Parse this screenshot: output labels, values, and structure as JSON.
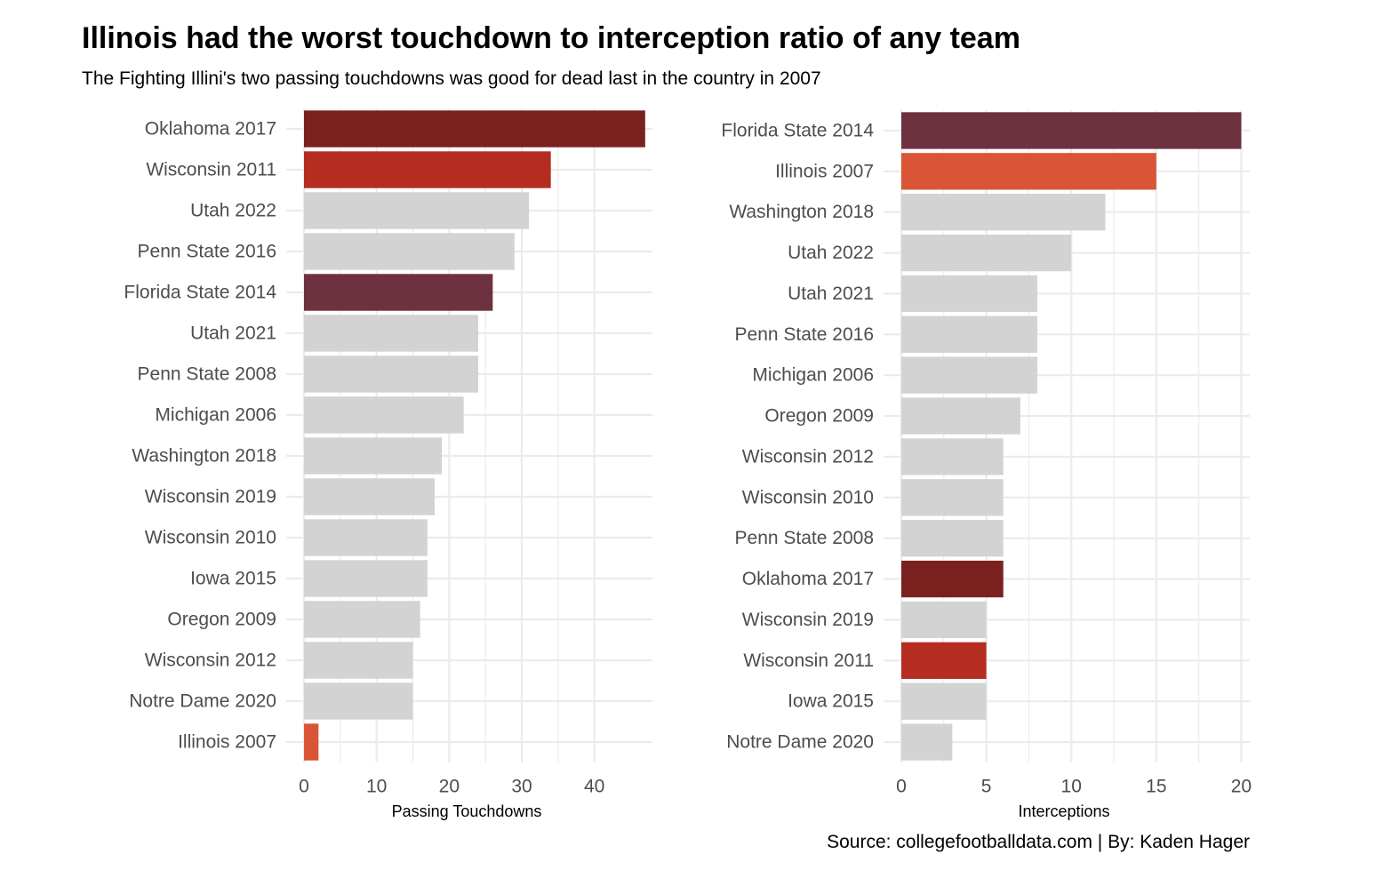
{
  "title": "Illinois had the worst touchdown to interception ratio of any team",
  "subtitle": "The Fighting Illini's two passing touchdowns was good for dead last in the country in 2007",
  "caption": "Source: collegefootballdata.com | By: Kaden Hager",
  "colors": {
    "default": "#d3d3d3",
    "Oklahoma 2017": "#7a2120",
    "Wisconsin 2011": "#b52d21",
    "Florida State 2014": "#6e3140",
    "Illinois 2007": "#d95535",
    "grid": "#ebebeb",
    "tick_text": "#4d4d4d"
  },
  "chart_data": [
    {
      "type": "bar",
      "orientation": "horizontal",
      "xlabel": "Passing Touchdowns",
      "xlim": [
        0,
        48
      ],
      "xticks": [
        0,
        10,
        20,
        30,
        40
      ],
      "categories": [
        "Oklahoma 2017",
        "Wisconsin 2011",
        "Utah 2022",
        "Penn State 2016",
        "Florida State 2014",
        "Utah 2021",
        "Penn State 2008",
        "Michigan 2006",
        "Washington 2018",
        "Wisconsin 2019",
        "Wisconsin 2010",
        "Iowa 2015",
        "Oregon 2009",
        "Wisconsin 2012",
        "Notre Dame 2020",
        "Illinois 2007"
      ],
      "values": [
        47,
        34,
        31,
        29,
        26,
        24,
        24,
        22,
        19,
        18,
        17,
        17,
        16,
        15,
        15,
        2
      ],
      "grid": true
    },
    {
      "type": "bar",
      "orientation": "horizontal",
      "xlabel": "Interceptions",
      "xlim": [
        0,
        20.5
      ],
      "xticks": [
        0,
        5,
        10,
        15,
        20
      ],
      "categories": [
        "Florida State 2014",
        "Illinois 2007",
        "Washington 2018",
        "Utah 2022",
        "Utah 2021",
        "Penn State 2016",
        "Michigan 2006",
        "Oregon 2009",
        "Wisconsin 2012",
        "Wisconsin 2010",
        "Penn State 2008",
        "Oklahoma 2017",
        "Wisconsin 2019",
        "Wisconsin 2011",
        "Iowa 2015",
        "Notre Dame 2020"
      ],
      "values": [
        20,
        15,
        12,
        10,
        8,
        8,
        8,
        7,
        6,
        6,
        6,
        6,
        5,
        5,
        5,
        3
      ],
      "grid": true
    }
  ]
}
